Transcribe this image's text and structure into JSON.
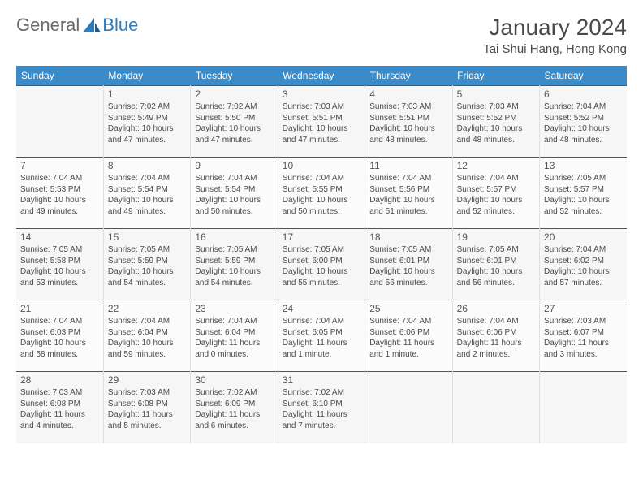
{
  "logo": {
    "text1": "General",
    "text2": "Blue"
  },
  "title": "January 2024",
  "location": "Tai Shui Hang, Hong Kong",
  "header_row_bg": "#3b8bc9",
  "header_row_fg": "#ffffff",
  "border_color": "#2f5d8a",
  "alt_row_bg1": "#f6f6f6",
  "alt_row_bg2": "#fbfbfb",
  "text_color": "#4a4a4a",
  "day_headers": [
    "Sunday",
    "Monday",
    "Tuesday",
    "Wednesday",
    "Thursday",
    "Friday",
    "Saturday"
  ],
  "weeks": [
    [
      null,
      {
        "n": "1",
        "sr": "Sunrise: 7:02 AM",
        "ss": "Sunset: 5:49 PM",
        "dl": "Daylight: 10 hours and 47 minutes."
      },
      {
        "n": "2",
        "sr": "Sunrise: 7:02 AM",
        "ss": "Sunset: 5:50 PM",
        "dl": "Daylight: 10 hours and 47 minutes."
      },
      {
        "n": "3",
        "sr": "Sunrise: 7:03 AM",
        "ss": "Sunset: 5:51 PM",
        "dl": "Daylight: 10 hours and 47 minutes."
      },
      {
        "n": "4",
        "sr": "Sunrise: 7:03 AM",
        "ss": "Sunset: 5:51 PM",
        "dl": "Daylight: 10 hours and 48 minutes."
      },
      {
        "n": "5",
        "sr": "Sunrise: 7:03 AM",
        "ss": "Sunset: 5:52 PM",
        "dl": "Daylight: 10 hours and 48 minutes."
      },
      {
        "n": "6",
        "sr": "Sunrise: 7:04 AM",
        "ss": "Sunset: 5:52 PM",
        "dl": "Daylight: 10 hours and 48 minutes."
      }
    ],
    [
      {
        "n": "7",
        "sr": "Sunrise: 7:04 AM",
        "ss": "Sunset: 5:53 PM",
        "dl": "Daylight: 10 hours and 49 minutes."
      },
      {
        "n": "8",
        "sr": "Sunrise: 7:04 AM",
        "ss": "Sunset: 5:54 PM",
        "dl": "Daylight: 10 hours and 49 minutes."
      },
      {
        "n": "9",
        "sr": "Sunrise: 7:04 AM",
        "ss": "Sunset: 5:54 PM",
        "dl": "Daylight: 10 hours and 50 minutes."
      },
      {
        "n": "10",
        "sr": "Sunrise: 7:04 AM",
        "ss": "Sunset: 5:55 PM",
        "dl": "Daylight: 10 hours and 50 minutes."
      },
      {
        "n": "11",
        "sr": "Sunrise: 7:04 AM",
        "ss": "Sunset: 5:56 PM",
        "dl": "Daylight: 10 hours and 51 minutes."
      },
      {
        "n": "12",
        "sr": "Sunrise: 7:04 AM",
        "ss": "Sunset: 5:57 PM",
        "dl": "Daylight: 10 hours and 52 minutes."
      },
      {
        "n": "13",
        "sr": "Sunrise: 7:05 AM",
        "ss": "Sunset: 5:57 PM",
        "dl": "Daylight: 10 hours and 52 minutes."
      }
    ],
    [
      {
        "n": "14",
        "sr": "Sunrise: 7:05 AM",
        "ss": "Sunset: 5:58 PM",
        "dl": "Daylight: 10 hours and 53 minutes."
      },
      {
        "n": "15",
        "sr": "Sunrise: 7:05 AM",
        "ss": "Sunset: 5:59 PM",
        "dl": "Daylight: 10 hours and 54 minutes."
      },
      {
        "n": "16",
        "sr": "Sunrise: 7:05 AM",
        "ss": "Sunset: 5:59 PM",
        "dl": "Daylight: 10 hours and 54 minutes."
      },
      {
        "n": "17",
        "sr": "Sunrise: 7:05 AM",
        "ss": "Sunset: 6:00 PM",
        "dl": "Daylight: 10 hours and 55 minutes."
      },
      {
        "n": "18",
        "sr": "Sunrise: 7:05 AM",
        "ss": "Sunset: 6:01 PM",
        "dl": "Daylight: 10 hours and 56 minutes."
      },
      {
        "n": "19",
        "sr": "Sunrise: 7:05 AM",
        "ss": "Sunset: 6:01 PM",
        "dl": "Daylight: 10 hours and 56 minutes."
      },
      {
        "n": "20",
        "sr": "Sunrise: 7:04 AM",
        "ss": "Sunset: 6:02 PM",
        "dl": "Daylight: 10 hours and 57 minutes."
      }
    ],
    [
      {
        "n": "21",
        "sr": "Sunrise: 7:04 AM",
        "ss": "Sunset: 6:03 PM",
        "dl": "Daylight: 10 hours and 58 minutes."
      },
      {
        "n": "22",
        "sr": "Sunrise: 7:04 AM",
        "ss": "Sunset: 6:04 PM",
        "dl": "Daylight: 10 hours and 59 minutes."
      },
      {
        "n": "23",
        "sr": "Sunrise: 7:04 AM",
        "ss": "Sunset: 6:04 PM",
        "dl": "Daylight: 11 hours and 0 minutes."
      },
      {
        "n": "24",
        "sr": "Sunrise: 7:04 AM",
        "ss": "Sunset: 6:05 PM",
        "dl": "Daylight: 11 hours and 1 minute."
      },
      {
        "n": "25",
        "sr": "Sunrise: 7:04 AM",
        "ss": "Sunset: 6:06 PM",
        "dl": "Daylight: 11 hours and 1 minute."
      },
      {
        "n": "26",
        "sr": "Sunrise: 7:04 AM",
        "ss": "Sunset: 6:06 PM",
        "dl": "Daylight: 11 hours and 2 minutes."
      },
      {
        "n": "27",
        "sr": "Sunrise: 7:03 AM",
        "ss": "Sunset: 6:07 PM",
        "dl": "Daylight: 11 hours and 3 minutes."
      }
    ],
    [
      {
        "n": "28",
        "sr": "Sunrise: 7:03 AM",
        "ss": "Sunset: 6:08 PM",
        "dl": "Daylight: 11 hours and 4 minutes."
      },
      {
        "n": "29",
        "sr": "Sunrise: 7:03 AM",
        "ss": "Sunset: 6:08 PM",
        "dl": "Daylight: 11 hours and 5 minutes."
      },
      {
        "n": "30",
        "sr": "Sunrise: 7:02 AM",
        "ss": "Sunset: 6:09 PM",
        "dl": "Daylight: 11 hours and 6 minutes."
      },
      {
        "n": "31",
        "sr": "Sunrise: 7:02 AM",
        "ss": "Sunset: 6:10 PM",
        "dl": "Daylight: 11 hours and 7 minutes."
      },
      null,
      null,
      null
    ]
  ]
}
